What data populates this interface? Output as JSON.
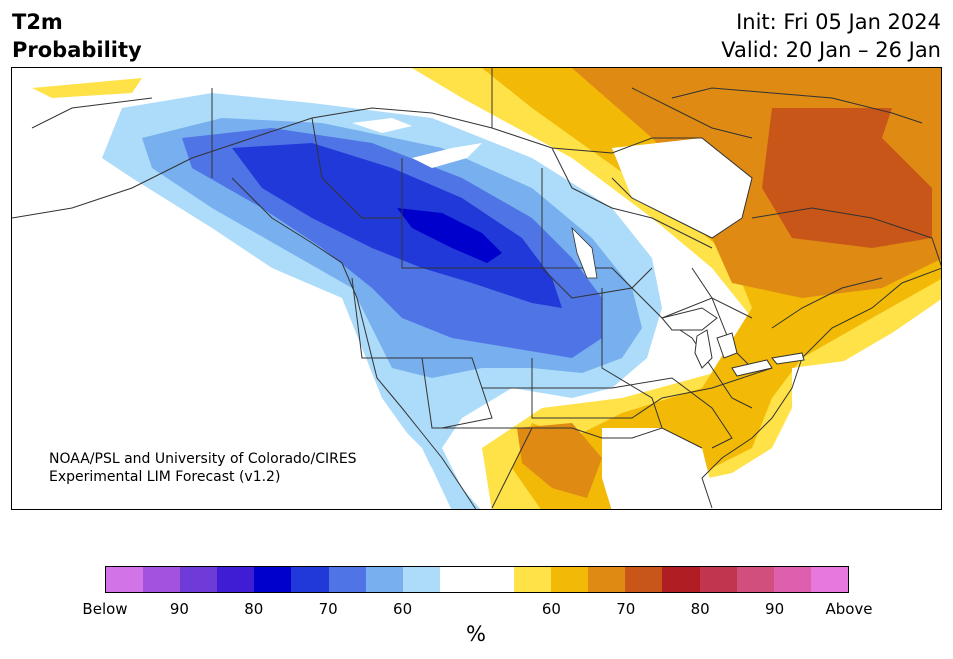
{
  "title": {
    "left_line1": "T2m",
    "left_line2": "Probability",
    "right_line1": "Init: Fri 05 Jan 2024",
    "right_line2": "Valid: 20 Jan – 26 Jan"
  },
  "credit": {
    "line1": "NOAA/PSL and University of Colorado/CIRES",
    "line2": "Experimental LIM Forecast (v1.2)"
  },
  "colorbar": {
    "unit_label": "%",
    "colors": [
      "#d274e8",
      "#a352e0",
      "#6e3bd8",
      "#3e1dd4",
      "#0000cd",
      "#2239d9",
      "#4f74e6",
      "#77afef",
      "#addcfa",
      "#ffffff",
      "#ffffff",
      "#ffe148",
      "#f2ba07",
      "#df8a13",
      "#c85618",
      "#b01e24",
      "#c1354f",
      "#d04f7d",
      "#de5fae",
      "#e879dc"
    ],
    "tick_labels": [
      "Below",
      "90",
      "80",
      "70",
      "60",
      "60",
      "70",
      "80",
      "90",
      "Above"
    ]
  },
  "map_layers": {
    "legend_meaning": "Probability of below (blue) / above (warm) normal 2 m temperature",
    "colors": {
      "blue_60": "#addcfa",
      "blue_65": "#77afef",
      "blue_70": "#4f74e6",
      "blue_75": "#2239d9",
      "blue_80": "#0000cd",
      "warm_55": "#ffe148",
      "warm_60": "#f2ba07",
      "warm_65": "#df8a13",
      "warm_70": "#c85618",
      "ocean": "#ffffff",
      "border": "#333333"
    }
  }
}
